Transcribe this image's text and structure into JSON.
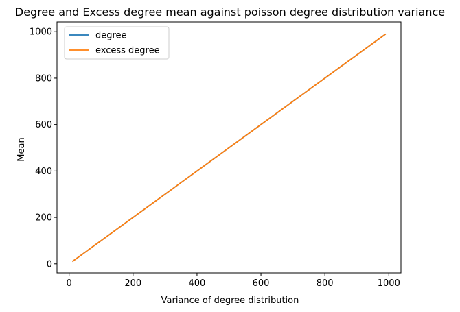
{
  "chart_data": {
    "type": "line",
    "title": "Degree and Excess degree mean against poisson degree distribution variance",
    "xlabel": "Variance of degree distribution",
    "ylabel": "Mean",
    "xlim": [
      -38,
      1038
    ],
    "ylim": [
      -39,
      1042
    ],
    "xticks": [
      0,
      200,
      400,
      600,
      800,
      1000
    ],
    "yticks": [
      0,
      200,
      400,
      600,
      800,
      1000
    ],
    "grid": false,
    "legend_position": "top-left",
    "series": [
      {
        "name": "degree",
        "color": "#1f77b4",
        "x": [
          10,
          990
        ],
        "y": [
          10,
          990
        ]
      },
      {
        "name": "excess degree",
        "color": "#ff7f0e",
        "x": [
          10,
          990
        ],
        "y": [
          10,
          990
        ]
      }
    ]
  }
}
